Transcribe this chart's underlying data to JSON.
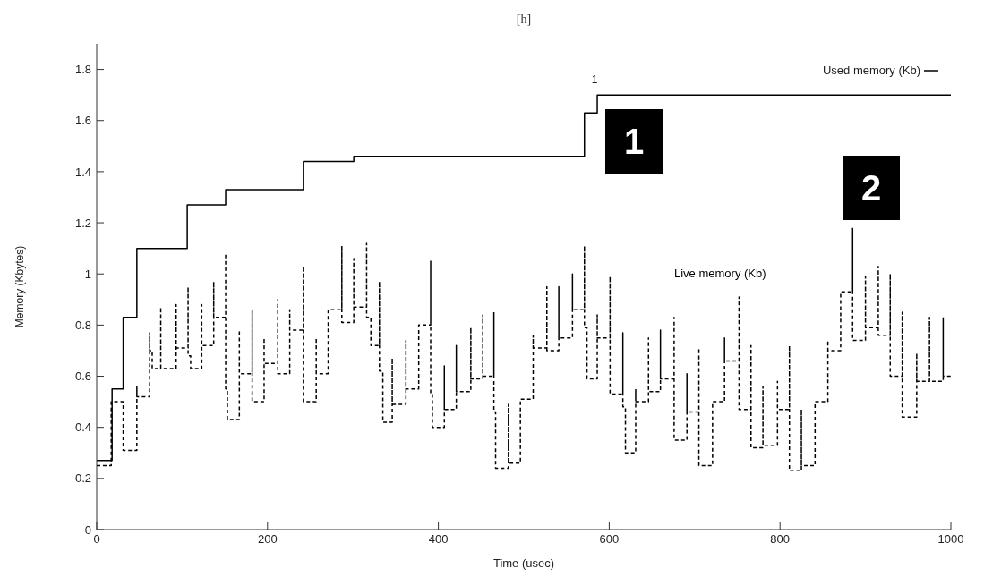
{
  "chart_data": {
    "type": "step",
    "title": "[h]",
    "xlabel": "Time (usec)",
    "ylabel": "Memory (Kbytes)",
    "xlim": [
      0,
      1000
    ],
    "xticks": [
      0,
      200,
      400,
      600,
      800,
      1000
    ],
    "ylim": [
      0,
      1.9
    ],
    "yticks": [
      0,
      0.2,
      0.4,
      0.6,
      0.8,
      1,
      1.2,
      1.4,
      1.6,
      1.8
    ],
    "grid": false,
    "legend": "top right",
    "marker": "none",
    "series": [
      {
        "name": "Used memory (Kb)",
        "color": "#000000",
        "line_style": "solid",
        "x": [
          0,
          18,
          31,
          47,
          106,
          151,
          242,
          301,
          571,
          586,
          1000
        ],
        "values": [
          0.27,
          0.55,
          0.83,
          1.1,
          1.27,
          1.33,
          1.44,
          1.46,
          1.63,
          1.7,
          1.7
        ]
      },
      {
        "name": "Live memory (Kb)",
        "color": "#000000",
        "line_style": "dashed",
        "x": [
          0,
          17,
          31,
          47,
          47,
          62,
          62,
          65,
          75,
          75,
          93,
          93,
          107,
          107,
          110,
          123,
          123,
          137,
          137,
          151,
          151,
          153,
          167,
          167,
          182,
          182,
          196,
          196,
          212,
          212,
          226,
          226,
          242,
          242,
          257,
          257,
          271,
          287,
          287,
          301,
          301,
          316,
          316,
          321,
          331,
          331,
          335,
          346,
          346,
          362,
          362,
          377,
          391,
          391,
          393,
          407,
          407,
          421,
          421,
          438,
          438,
          452,
          452,
          465,
          465,
          467,
          482,
          482,
          496,
          511,
          511,
          527,
          527,
          541,
          541,
          557,
          557,
          571,
          571,
          574,
          586,
          586,
          601,
          601,
          616,
          616,
          619,
          631,
          631,
          646,
          646,
          660,
          660,
          676,
          676,
          691,
          691,
          705,
          705,
          721,
          735,
          735,
          752,
          752,
          766,
          766,
          780,
          780,
          797,
          797,
          811,
          811,
          825,
          825,
          841,
          856,
          856,
          871,
          885,
          885,
          900,
          900,
          915,
          915,
          929,
          929,
          943,
          943,
          960,
          960,
          975,
          975,
          991,
          991,
          1000
        ],
        "values": [
          0.25,
          0.5,
          0.31,
          0.56,
          0.52,
          0.77,
          0.7,
          0.63,
          0.87,
          0.63,
          0.88,
          0.71,
          0.95,
          0.68,
          0.63,
          0.88,
          0.72,
          0.97,
          0.83,
          1.08,
          0.55,
          0.43,
          0.78,
          0.61,
          0.86,
          0.5,
          0.75,
          0.65,
          0.9,
          0.61,
          0.86,
          0.78,
          1.03,
          0.5,
          0.75,
          0.61,
          0.86,
          1.11,
          0.81,
          1.06,
          0.87,
          1.12,
          0.83,
          0.72,
          0.97,
          0.62,
          0.42,
          0.67,
          0.49,
          0.74,
          0.55,
          0.8,
          1.05,
          0.53,
          0.4,
          0.64,
          0.47,
          0.72,
          0.54,
          0.79,
          0.59,
          0.84,
          0.6,
          0.85,
          0.46,
          0.24,
          0.49,
          0.26,
          0.51,
          0.76,
          0.71,
          0.95,
          0.7,
          0.95,
          0.75,
          1.0,
          0.86,
          1.11,
          0.79,
          0.59,
          0.84,
          0.75,
          0.99,
          0.53,
          0.77,
          0.48,
          0.3,
          0.55,
          0.5,
          0.75,
          0.54,
          0.78,
          0.59,
          0.83,
          0.35,
          0.61,
          0.46,
          0.71,
          0.25,
          0.5,
          0.75,
          0.66,
          0.91,
          0.47,
          0.72,
          0.32,
          0.56,
          0.33,
          0.58,
          0.47,
          0.72,
          0.23,
          0.47,
          0.25,
          0.5,
          0.74,
          0.7,
          0.93,
          1.18,
          0.74,
          0.99,
          0.79,
          1.03,
          0.76,
          1.0,
          0.6,
          0.85,
          0.44,
          0.69,
          0.58,
          0.83,
          0.58,
          0.83,
          0.6,
          0.6
        ]
      }
    ],
    "annotations": [
      {
        "text": "1",
        "x": 583,
        "y": 1.7
      },
      "1",
      "2"
    ]
  }
}
